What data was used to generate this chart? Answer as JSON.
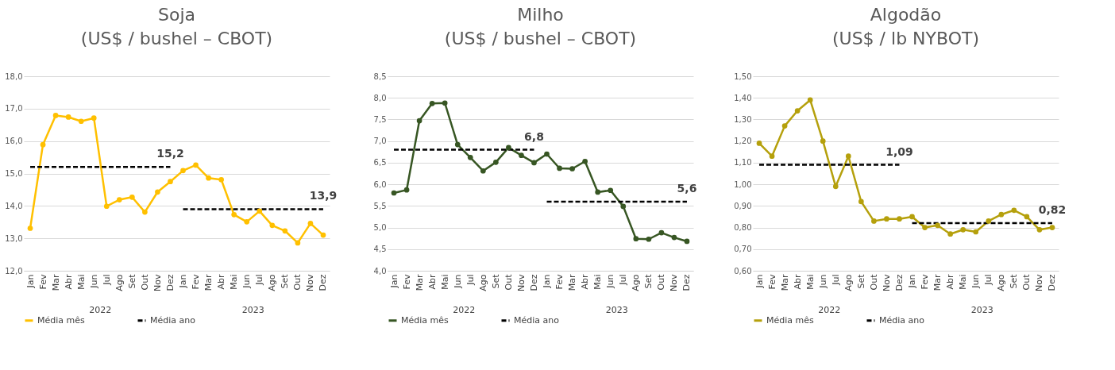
{
  "chart_data": [
    {
      "type": "line",
      "title": "Soja",
      "subtitle": "(US$ / bushel – CBOT)",
      "categories": [
        "Jan",
        "Fev",
        "Mar",
        "Abr",
        "Mai",
        "Jun",
        "Jul",
        "Ago",
        "Set",
        "Out",
        "Nov",
        "Dez",
        "Jan",
        "Fev",
        "Mar",
        "Abr",
        "Mai",
        "Jun",
        "Jul",
        "Ago",
        "Set",
        "Out",
        "Nov",
        "Dez"
      ],
      "annotations": [
        "2022",
        "2023"
      ],
      "ylim": [
        12,
        18
      ],
      "yticks": [
        {
          "value": 12,
          "label": "12,0"
        },
        {
          "value": 13,
          "label": "13,0"
        },
        {
          "value": 14,
          "label": "14,0"
        },
        {
          "value": 15,
          "label": "15,0"
        },
        {
          "value": 16,
          "label": "16,0"
        },
        {
          "value": 17,
          "label": "17,0"
        },
        {
          "value": 18,
          "label": "18,0"
        }
      ],
      "grid": "y",
      "legend": "bottom",
      "marker": "circle",
      "series": [
        {
          "name": "Média mês",
          "color": "#ffc000",
          "values": [
            13.31,
            15.89,
            16.79,
            16.74,
            16.61,
            16.71,
            13.99,
            14.19,
            14.27,
            13.81,
            14.43,
            14.75,
            15.09,
            15.26,
            14.86,
            14.81,
            13.73,
            13.51,
            13.84,
            13.4,
            13.23,
            12.86,
            13.46,
            13.1
          ]
        },
        {
          "name": "Média ano",
          "color": "#000000",
          "line_style": "dashed",
          "marker": "none",
          "values": [
            15.2,
            15.2,
            15.2,
            15.2,
            15.2,
            15.2,
            15.2,
            15.2,
            15.2,
            15.2,
            15.2,
            15.2,
            null,
            null,
            null,
            null,
            null,
            null,
            null,
            null,
            null,
            null,
            null,
            null
          ],
          "value_labels": [
            null,
            null,
            null,
            null,
            null,
            null,
            null,
            null,
            null,
            null,
            null,
            "15,2",
            null,
            null,
            null,
            null,
            null,
            null,
            null,
            null,
            null,
            null,
            null,
            null
          ]
        },
        {
          "color": "#000000",
          "line_style": "dashed",
          "marker": "none",
          "values": [
            null,
            null,
            null,
            null,
            null,
            null,
            null,
            null,
            null,
            null,
            null,
            null,
            13.9,
            13.9,
            13.9,
            13.9,
            13.9,
            13.9,
            13.9,
            13.9,
            13.9,
            13.9,
            13.9,
            13.9
          ],
          "value_labels": [
            null,
            null,
            null,
            null,
            null,
            null,
            null,
            null,
            null,
            null,
            null,
            null,
            null,
            null,
            null,
            null,
            null,
            null,
            null,
            null,
            null,
            null,
            null,
            "13,9"
          ]
        }
      ]
    },
    {
      "type": "line",
      "title": "Milho",
      "subtitle": "(US$ / bushel – CBOT)",
      "categories": [
        "Jan",
        "Fev",
        "Mar",
        "Abr",
        "Mai",
        "Jun",
        "Jul",
        "Ago",
        "Set",
        "Out",
        "Nov",
        "Dez",
        "Jan",
        "Fev",
        "Mar",
        "Abr",
        "Mai",
        "Jun",
        "Jul",
        "Ago",
        "Set",
        "Out",
        "Nov",
        "Dez"
      ],
      "annotations": [
        "2022",
        "2023"
      ],
      "ylim": [
        4,
        8.5
      ],
      "yticks": [
        {
          "value": 4,
          "label": "4,0"
        },
        {
          "value": 4.5,
          "label": "4,5"
        },
        {
          "value": 5,
          "label": "5,0"
        },
        {
          "value": 5.5,
          "label": "5,5"
        },
        {
          "value": 6,
          "label": "6,0"
        },
        {
          "value": 6.5,
          "label": "6,5"
        },
        {
          "value": 7,
          "label": "7,0"
        },
        {
          "value": 7.5,
          "label": "7,5"
        },
        {
          "value": 8,
          "label": "8,0"
        },
        {
          "value": 8.5,
          "label": "8,5"
        }
      ],
      "grid": "y",
      "legend": "bottom",
      "marker": "circle",
      "series": [
        {
          "name": "Média mês",
          "color": "#375623",
          "values": [
            5.8,
            5.87,
            7.47,
            7.87,
            7.88,
            6.92,
            6.62,
            6.31,
            6.51,
            6.85,
            6.67,
            6.5,
            6.7,
            6.37,
            6.36,
            6.53,
            5.82,
            5.86,
            5.49,
            4.74,
            4.73,
            4.88,
            4.77,
            4.68
          ]
        },
        {
          "name": "Média ano",
          "color": "#000000",
          "line_style": "dashed",
          "marker": "none",
          "values": [
            6.8,
            6.8,
            6.8,
            6.8,
            6.8,
            6.8,
            6.8,
            6.8,
            6.8,
            6.8,
            6.8,
            6.8,
            null,
            null,
            null,
            null,
            null,
            null,
            null,
            null,
            null,
            null,
            null,
            null
          ],
          "value_labels": [
            null,
            null,
            null,
            null,
            null,
            null,
            null,
            null,
            null,
            null,
            null,
            "6,8",
            null,
            null,
            null,
            null,
            null,
            null,
            null,
            null,
            null,
            null,
            null,
            null
          ]
        },
        {
          "color": "#000000",
          "line_style": "dashed",
          "marker": "none",
          "values": [
            null,
            null,
            null,
            null,
            null,
            null,
            null,
            null,
            null,
            null,
            null,
            null,
            5.6,
            5.6,
            5.6,
            5.6,
            5.6,
            5.6,
            5.6,
            5.6,
            5.6,
            5.6,
            5.6,
            5.6
          ],
          "value_labels": [
            null,
            null,
            null,
            null,
            null,
            null,
            null,
            null,
            null,
            null,
            null,
            null,
            null,
            null,
            null,
            null,
            null,
            null,
            null,
            null,
            null,
            null,
            null,
            "5,6"
          ]
        }
      ]
    },
    {
      "type": "line",
      "title": "Algodão",
      "subtitle": "(US$ / lb NYBOT)",
      "categories": [
        "Jan",
        "Fev",
        "Mar",
        "Abr",
        "Mai",
        "Jun",
        "Jul",
        "Ago",
        "Set",
        "Out",
        "Nov",
        "Dez",
        "Jan",
        "Fev",
        "Mar",
        "Abr",
        "Mai",
        "Jun",
        "Jul",
        "Ago",
        "Set",
        "Out",
        "Nov",
        "Dez"
      ],
      "annotations": [
        "2022",
        "2023"
      ],
      "ylim": [
        0.6,
        1.5
      ],
      "yticks": [
        {
          "value": 0.6,
          "label": "0,60"
        },
        {
          "value": 0.7,
          "label": "0,70"
        },
        {
          "value": 0.8,
          "label": "0,80"
        },
        {
          "value": 0.9,
          "label": "0,90"
        },
        {
          "value": 1.0,
          "label": "1,00"
        },
        {
          "value": 1.1,
          "label": "1,10"
        },
        {
          "value": 1.2,
          "label": "1,20"
        },
        {
          "value": 1.3,
          "label": "1,30"
        },
        {
          "value": 1.4,
          "label": "1,40"
        },
        {
          "value": 1.5,
          "label": "1,50"
        }
      ],
      "grid": "y",
      "legend": "bottom",
      "marker": "circle",
      "series": [
        {
          "name": "Média mês",
          "color": "#b5a00c",
          "values": [
            1.19,
            1.13,
            1.27,
            1.34,
            1.39,
            1.2,
            0.99,
            1.13,
            0.92,
            0.83,
            0.84,
            0.84,
            0.85,
            0.8,
            0.81,
            0.77,
            0.79,
            0.78,
            0.83,
            0.86,
            0.88,
            0.85,
            0.79,
            0.8
          ]
        },
        {
          "name": "Média ano",
          "color": "#000000",
          "line_style": "dashed",
          "marker": "none",
          "values": [
            1.09,
            1.09,
            1.09,
            1.09,
            1.09,
            1.09,
            1.09,
            1.09,
            1.09,
            1.09,
            1.09,
            1.09,
            null,
            null,
            null,
            null,
            null,
            null,
            null,
            null,
            null,
            null,
            null,
            null
          ],
          "value_labels": [
            null,
            null,
            null,
            null,
            null,
            null,
            null,
            null,
            null,
            null,
            null,
            "1,09",
            null,
            null,
            null,
            null,
            null,
            null,
            null,
            null,
            null,
            null,
            null,
            null
          ]
        },
        {
          "color": "#000000",
          "line_style": "dashed",
          "marker": "none",
          "values": [
            null,
            null,
            null,
            null,
            null,
            null,
            null,
            null,
            null,
            null,
            null,
            null,
            0.82,
            0.82,
            0.82,
            0.82,
            0.82,
            0.82,
            0.82,
            0.82,
            0.82,
            0.82,
            0.82,
            0.82
          ],
          "value_labels": [
            null,
            null,
            null,
            null,
            null,
            null,
            null,
            null,
            null,
            null,
            null,
            null,
            null,
            null,
            null,
            null,
            null,
            null,
            null,
            null,
            null,
            null,
            null,
            "0,82"
          ]
        }
      ]
    }
  ]
}
